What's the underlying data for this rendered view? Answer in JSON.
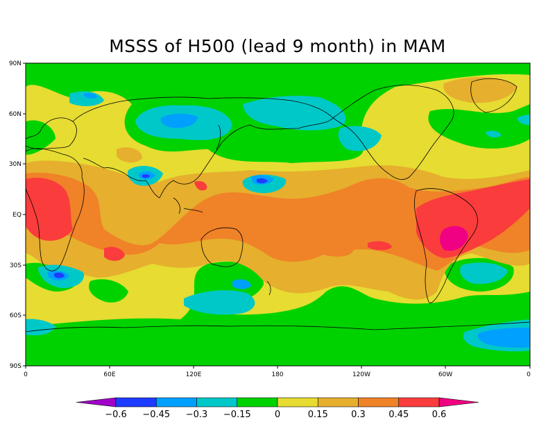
{
  "title": "MSSS of H500 (lead 9 month) in MAM",
  "lat_ticks": [
    "90N",
    "60N",
    "30N",
    "EQ",
    "30S",
    "60S",
    "90S"
  ],
  "lon_ticks": [
    "0",
    "60E",
    "120E",
    "180",
    "120W",
    "60W",
    "0"
  ],
  "colorbar": {
    "labels": [
      "-0.6",
      "-0.45",
      "-0.3",
      "-0.15",
      "0",
      "0.15",
      "0.3",
      "0.45",
      "0.6"
    ],
    "colors": [
      "#a000c8",
      "#1e3cff",
      "#00a0ff",
      "#00c8c8",
      "#00d200",
      "#e6dc32",
      "#e6af2d",
      "#f08228",
      "#fa3c3c",
      "#f00082"
    ]
  },
  "chart_data": {
    "type": "heatmap",
    "title": "MSSS of H500 (lead 9 month) in MAM",
    "x_ticks": [
      "0",
      "60E",
      "120E",
      "180",
      "120W",
      "60W",
      "0"
    ],
    "y_ticks": [
      "90N",
      "60N",
      "30N",
      "EQ",
      "30S",
      "60S",
      "90S"
    ],
    "levels": [
      -0.6,
      -0.45,
      -0.3,
      -0.15,
      0,
      0.15,
      0.3,
      0.45,
      0.6
    ],
    "regions": [
      {
        "area": "Atlantic / Sahel 10S-20N, 0-20E",
        "level_range": "0.45 to 0.6"
      },
      {
        "area": "South America / tropical Atlantic",
        "level_range": "0.45 to 0.6+"
      },
      {
        "area": "Brazil core",
        "level_range": ">0.6"
      },
      {
        "area": "Tropical Indo-Pacific belt",
        "level_range": "0.3 to 0.45"
      },
      {
        "area": "Central North Pacific 20N,170E",
        "level_range": "-0.45 to -0.3"
      },
      {
        "area": "North Pacific 45-55N",
        "level_range": "-0.3 to -0.15"
      },
      {
        "area": "Siberia 55-65N, 80-130E",
        "level_range": "-0.45 to -0.15"
      },
      {
        "area": "South Africa 35S",
        "level_range": "-0.45 to -0.15"
      },
      {
        "area": "Southern Ocean 50S,110-170E",
        "level_range": "-0.3 to -0.15"
      },
      {
        "area": "South Atlantic 35S,40-20W",
        "level_range": "-0.3 to -0.15"
      },
      {
        "area": "Antarctic Atlantic sector 70S",
        "level_range": "-0.45 to -0.15"
      }
    ]
  }
}
